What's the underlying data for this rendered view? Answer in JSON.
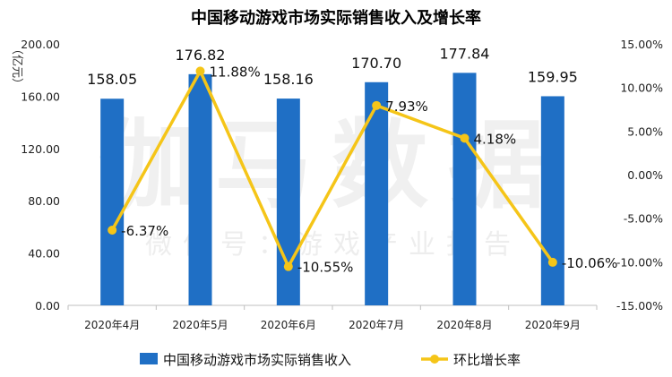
{
  "chart_data": {
    "type": "bar",
    "title": "中国移动游戏市场实际销售收入及增长率",
    "ylabel_left": "（亿元）",
    "categories": [
      "2020年4月",
      "2020年5月",
      "2020年6月",
      "2020年7月",
      "2020年8月",
      "2020年9月"
    ],
    "ylim_left": [
      0,
      200
    ],
    "yticks_left": [
      "0.00",
      "40.00",
      "80.00",
      "120.00",
      "160.00",
      "200.00"
    ],
    "ylim_right": [
      -15,
      15
    ],
    "yticks_right": [
      "-15.00%",
      "-10.00%",
      "-5.00%",
      "0.00%",
      "5.00%",
      "10.00%",
      "15.00%"
    ],
    "grid": false,
    "legend_position": "bottom",
    "series": [
      {
        "name": "中国移动游戏市场实际销售收入",
        "type": "bar",
        "axis": "left",
        "color": "#1f6fc5",
        "values": [
          158.05,
          176.82,
          158.16,
          170.7,
          177.84,
          159.95
        ],
        "labels": [
          "158.05",
          "176.82",
          "158.16",
          "170.70",
          "177.84",
          "159.95"
        ]
      },
      {
        "name": "环比增长率",
        "type": "line",
        "axis": "right",
        "color": "#f5c518",
        "values": [
          -6.37,
          11.88,
          -10.55,
          7.93,
          4.18,
          -10.06
        ],
        "labels": [
          "-6.37%",
          "11.88%",
          "-10.55%",
          "7.93%",
          "4.18%",
          "-10.06%"
        ]
      }
    ],
    "watermark": {
      "main": "伽马数据",
      "sub": "微信号：游戏产业报告"
    }
  }
}
